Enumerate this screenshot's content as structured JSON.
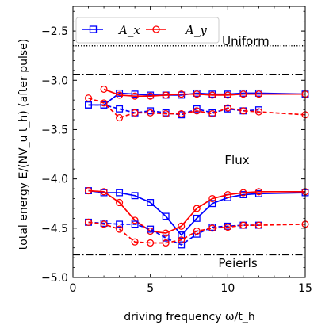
{
  "chart_data": {
    "type": "line",
    "xlabel": "driving frequency ω/t_h",
    "ylabel": "total energy E/(NV_u t_h) (after pulse)",
    "xlim": [
      0,
      15
    ],
    "ylim": [
      -5.0,
      -2.25
    ],
    "x_ticks": [
      0,
      5,
      10,
      15
    ],
    "y_ticks": [
      -5.0,
      -4.5,
      -4.0,
      -3.5,
      -3.0,
      -2.5
    ],
    "x_tick_labels": [
      "0",
      "5",
      "10",
      "15"
    ],
    "y_tick_labels": [
      "−5.0",
      "−4.5",
      "−4.0",
      "−3.5",
      "−3.0",
      "−2.5"
    ],
    "grid": false,
    "legend_position": "top-left",
    "reference_lines": [
      {
        "label": "Uniform",
        "y": -2.65,
        "style": "dotted"
      },
      {
        "label": "",
        "y": -2.94,
        "style": "dashdot"
      },
      {
        "label": "Peierls",
        "y": -4.77,
        "style": "dashdot"
      }
    ],
    "annotations": [
      {
        "text": "Flux",
        "x": 10.5,
        "y": -3.84
      }
    ],
    "series": [
      {
        "name": "A_x",
        "color": "#0000ff",
        "marker": "square",
        "linestyle": "solid",
        "x": [
          1,
          2,
          3,
          4,
          5,
          6,
          7,
          8,
          9,
          10,
          11,
          12,
          15
        ],
        "y": [
          -3.25,
          -3.25,
          -3.13,
          -3.14,
          -3.15,
          -3.15,
          -3.15,
          -3.13,
          -3.14,
          -3.14,
          -3.13,
          -3.13,
          -3.14
        ]
      },
      {
        "name": "A_y",
        "color": "#ff0000",
        "marker": "circle",
        "linestyle": "solid",
        "x": [
          2,
          3,
          4,
          5,
          6,
          7,
          8,
          9,
          10,
          11,
          12,
          15
        ],
        "y": [
          -3.09,
          -3.15,
          -3.16,
          -3.16,
          -3.15,
          -3.14,
          -3.14,
          -3.15,
          -3.15,
          -3.14,
          -3.14,
          -3.14
        ]
      },
      {
        "name": "",
        "color": "#0000ff",
        "marker": "square",
        "linestyle": "dashed",
        "x": [
          1,
          2,
          3,
          4,
          5,
          6,
          7,
          8,
          9,
          10,
          11,
          12
        ],
        "y": [
          -3.25,
          -3.25,
          -3.29,
          -3.33,
          -3.31,
          -3.33,
          -3.35,
          -3.29,
          -3.33,
          -3.29,
          -3.31,
          -3.3
        ]
      },
      {
        "name": "",
        "color": "#ff0000",
        "marker": "circle",
        "linestyle": "dashed",
        "x": [
          1,
          2,
          3,
          4,
          5,
          6,
          7,
          8,
          9,
          10,
          11,
          12,
          15
        ],
        "y": [
          -3.18,
          -3.23,
          -3.38,
          -3.33,
          -3.33,
          -3.34,
          -3.34,
          -3.31,
          -3.34,
          -3.28,
          -3.31,
          -3.32,
          -3.35
        ]
      },
      {
        "name": "",
        "color": "#0000ff",
        "marker": "square",
        "linestyle": "solid",
        "x": [
          1,
          2,
          3,
          4,
          5,
          6,
          7,
          8,
          9,
          10,
          11,
          12,
          15
        ],
        "y": [
          -4.12,
          -4.14,
          -4.14,
          -4.17,
          -4.24,
          -4.38,
          -4.57,
          -4.4,
          -4.25,
          -4.19,
          -4.16,
          -4.15,
          -4.14
        ]
      },
      {
        "name": "",
        "color": "#ff0000",
        "marker": "circle",
        "linestyle": "solid",
        "x": [
          1,
          2,
          3,
          4,
          5,
          6,
          7,
          8,
          9,
          10,
          11,
          12,
          15
        ],
        "y": [
          -4.12,
          -4.13,
          -4.24,
          -4.42,
          -4.53,
          -4.55,
          -4.48,
          -4.3,
          -4.2,
          -4.16,
          -4.14,
          -4.13,
          -4.13
        ]
      },
      {
        "name": "",
        "color": "#0000ff",
        "marker": "square",
        "linestyle": "dashed",
        "x": [
          1,
          2,
          3,
          4,
          5,
          6,
          7,
          8,
          9,
          10,
          11,
          12
        ],
        "y": [
          -4.44,
          -4.45,
          -4.46,
          -4.46,
          -4.51,
          -4.6,
          -4.67,
          -4.56,
          -4.49,
          -4.48,
          -4.47,
          -4.47
        ]
      },
      {
        "name": "",
        "color": "#ff0000",
        "marker": "circle",
        "linestyle": "dashed",
        "x": [
          1,
          2,
          3,
          4,
          5,
          6,
          7,
          8,
          9,
          10,
          11,
          12,
          15
        ],
        "y": [
          -4.44,
          -4.46,
          -4.51,
          -4.64,
          -4.65,
          -4.65,
          -4.62,
          -4.53,
          -4.5,
          -4.49,
          -4.47,
          -4.47,
          -4.46
        ]
      }
    ]
  }
}
